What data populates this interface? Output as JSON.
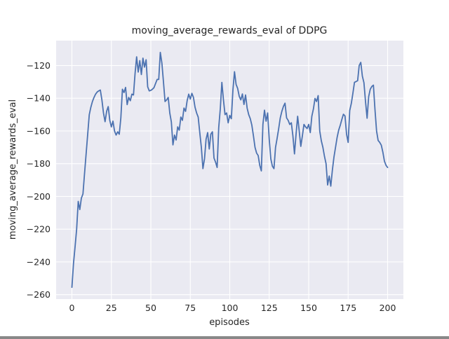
{
  "chart_data": {
    "type": "line",
    "title": "moving_average_rewards_eval of DDPG",
    "xlabel": "episodes",
    "ylabel": "moving_average_rewards_eval",
    "grid": true,
    "legend": null,
    "xlim": [
      -10,
      210
    ],
    "ylim": [
      -262.7,
      -104.8
    ],
    "xticks": [
      0,
      25,
      50,
      75,
      100,
      125,
      150,
      175,
      200
    ],
    "yticks": [
      -120,
      -140,
      -160,
      -180,
      -200,
      -220,
      -240,
      -260
    ],
    "style": {
      "line_color": "#4C72B0",
      "axes_bg": "#EAEAF2",
      "grid_color": "#FFFFFF",
      "figure_bg": "#FFFFFF",
      "text_color": "#262626"
    },
    "series": [
      {
        "name": "moving_average_rewards_eval",
        "color": "#4C72B0",
        "x_start": 0,
        "x_step": 1,
        "values": [
          -255.5,
          -241,
          -230.8,
          -220,
          -203,
          -208,
          -201,
          -198.5,
          -186,
          -174,
          -162,
          -150,
          -145.5,
          -142,
          -139.5,
          -137.5,
          -136.2,
          -135.5,
          -135,
          -141,
          -149,
          -154.3,
          -148,
          -145.1,
          -153.5,
          -157.5,
          -154,
          -160,
          -162.5,
          -160.5,
          -162,
          -152,
          -134.5,
          -136.5,
          -133.4,
          -143.9,
          -139.5,
          -141.5,
          -137.5,
          -138,
          -125,
          -114.7,
          -124,
          -117,
          -125.5,
          -115.5,
          -121,
          -116.5,
          -133,
          -135.5,
          -135.2,
          -134.5,
          -133.5,
          -131,
          -128.5,
          -128.5,
          -112,
          -118.5,
          -130,
          -142,
          -141,
          -139.5,
          -149,
          -154.5,
          -168.5,
          -162.5,
          -165.5,
          -157.5,
          -159.5,
          -151.5,
          -153.5,
          -146,
          -148,
          -141.5,
          -137.5,
          -140.5,
          -137,
          -139.5,
          -145.5,
          -149,
          -151.5,
          -161,
          -170,
          -183,
          -177,
          -165,
          -161,
          -171,
          -162,
          -160.5,
          -176.5,
          -179,
          -182.3,
          -158,
          -146.5,
          -130.3,
          -141,
          -150,
          -149,
          -155,
          -150.5,
          -152.5,
          -135,
          -123.8,
          -131.5,
          -134,
          -138.8,
          -141,
          -137.4,
          -143.8,
          -138,
          -146,
          -150,
          -152.5,
          -156.5,
          -163,
          -170,
          -173.5,
          -175,
          -181,
          -184.4,
          -156,
          -147.3,
          -154,
          -149,
          -165,
          -177,
          -181.5,
          -183,
          -170,
          -164.5,
          -158.5,
          -152,
          -148,
          -145,
          -143,
          -152,
          -153.5,
          -156,
          -155,
          -163,
          -174,
          -162,
          -151,
          -160,
          -169.4,
          -163,
          -156,
          -157.5,
          -158.5,
          -156,
          -161,
          -151,
          -146.5,
          -140.1,
          -142,
          -138.4,
          -160,
          -166,
          -170,
          -175.5,
          -180,
          -193,
          -187.5,
          -193.7,
          -184,
          -176,
          -170,
          -164,
          -159.5,
          -156.5,
          -153,
          -149.8,
          -150.8,
          -162,
          -167,
          -147.5,
          -143.2,
          -137,
          -130.3,
          -129.8,
          -129.3,
          -120,
          -118.1,
          -126.5,
          -130.5,
          -142,
          -152.2,
          -139,
          -134.5,
          -132.8,
          -132,
          -147,
          -160,
          -165.8,
          -167,
          -168.7,
          -173,
          -178.5,
          -181,
          -182.3
        ]
      }
    ]
  }
}
